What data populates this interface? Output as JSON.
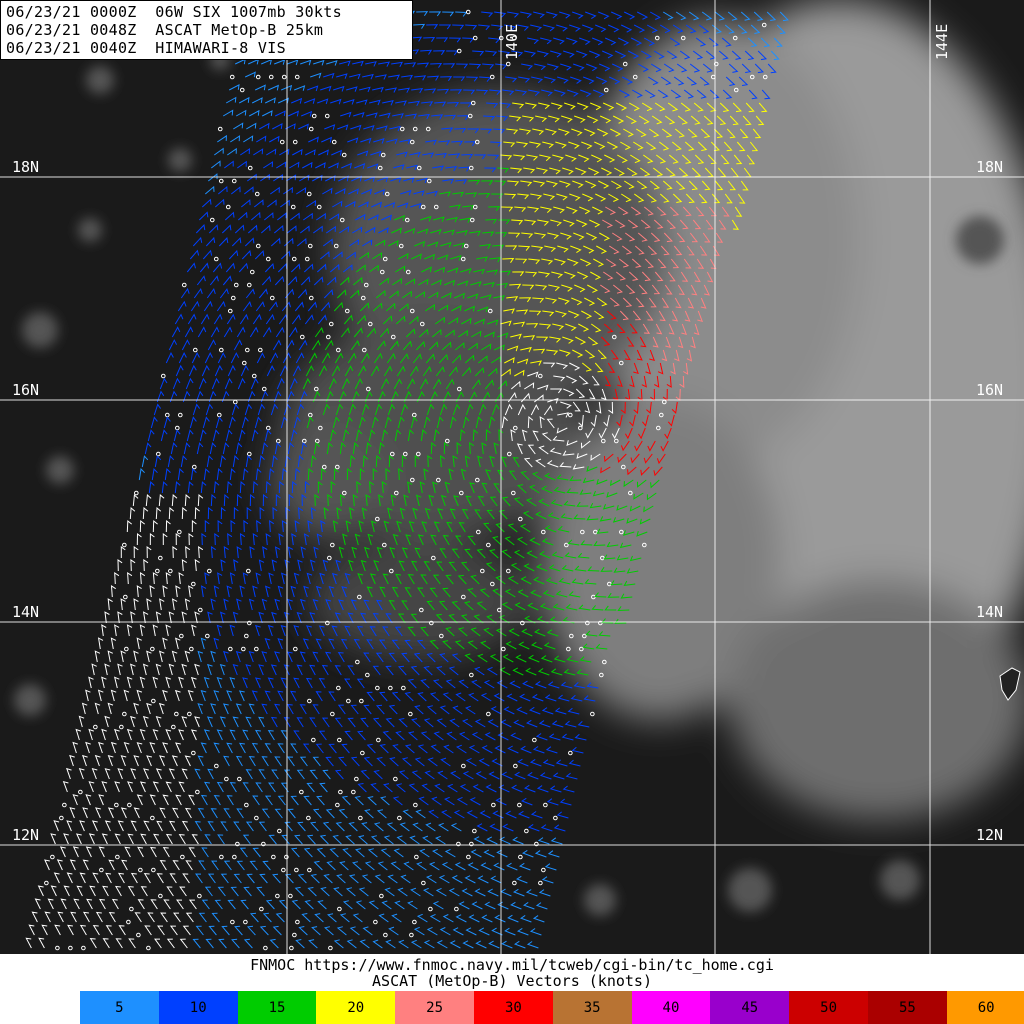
{
  "header": {
    "line1": "06/23/21 0000Z  06W SIX 1007mb 30kts",
    "line2": "06/23/21 0048Z  ASCAT MetOp-B 25km",
    "line3": "06/23/21 0040Z  HIMAWARI-8 VIS"
  },
  "grid": {
    "lat_labels": [
      "18N",
      "16N",
      "14N",
      "12N"
    ],
    "lon_labels": [
      "140E",
      "144E"
    ]
  },
  "footer": {
    "credit_line1": "FNMOC https://www.fnmoc.navy.mil/tcweb/cgi-bin/tc_home.cgi",
    "credit_line2": "ASCAT (MetOp-B) Vectors (knots)"
  },
  "scale": [
    {
      "label": "5",
      "color": "#1e90ff"
    },
    {
      "label": "10",
      "color": "#0040ff"
    },
    {
      "label": "15",
      "color": "#00cc00"
    },
    {
      "label": "20",
      "color": "#ffff00"
    },
    {
      "label": "25",
      "color": "#ff8080"
    },
    {
      "label": "30",
      "color": "#ff0000"
    },
    {
      "label": "35",
      "color": "#b87333"
    },
    {
      "label": "40",
      "color": "#ff00ff"
    },
    {
      "label": "45",
      "color": "#9900cc"
    },
    {
      "label": "50",
      "color": "#cc0000"
    },
    {
      "label": "55",
      "color": "#aa0000"
    },
    {
      "label": "60",
      "color": "#ff9900"
    }
  ]
}
